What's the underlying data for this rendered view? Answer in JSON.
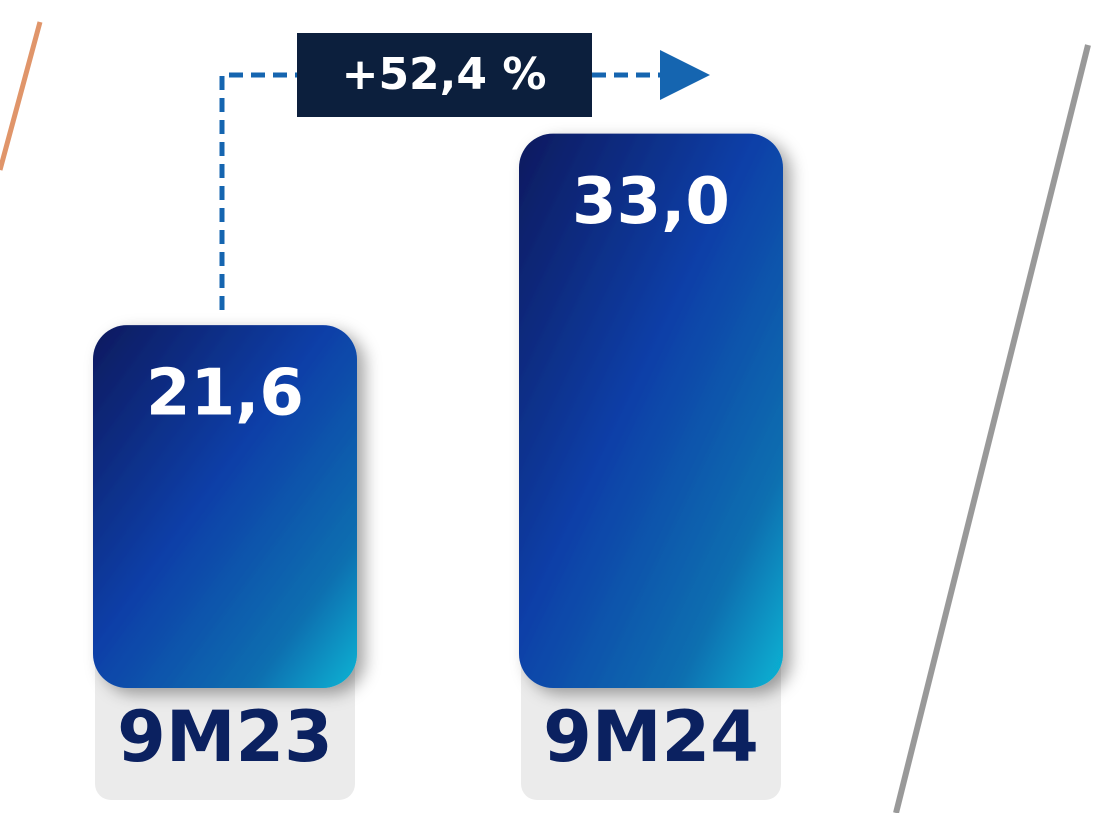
{
  "chart_data": {
    "type": "bar",
    "categories": [
      "9M23",
      "9M24"
    ],
    "values": [
      21.6,
      33.0
    ],
    "value_labels": [
      "21,6",
      "33,0"
    ],
    "annotation": "+52,4 %"
  }
}
